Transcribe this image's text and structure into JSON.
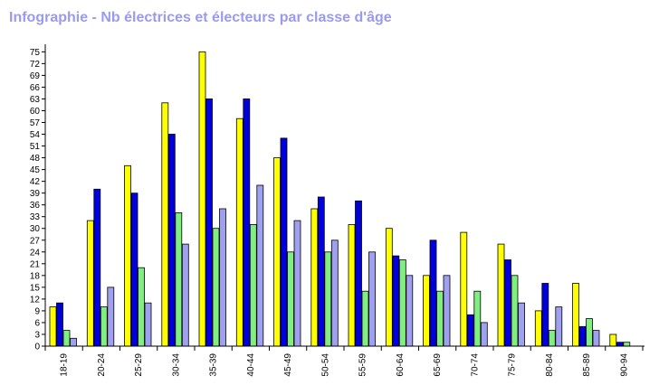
{
  "chart_data": {
    "type": "bar",
    "title": "Infographie - Nb électrices et électeurs par classe d'âge",
    "xlabel": "",
    "ylabel": "",
    "ylim": [
      0,
      76
    ],
    "yticks": [
      0,
      3,
      6,
      9,
      12,
      15,
      18,
      21,
      24,
      27,
      30,
      33,
      36,
      39,
      42,
      45,
      48,
      51,
      54,
      57,
      60,
      63,
      66,
      69,
      72,
      75
    ],
    "ytick_labels": [
      "0",
      "3",
      "6",
      "9",
      "12",
      "15",
      "18",
      "21",
      "24",
      "27",
      "30",
      "33",
      "36",
      "39",
      "42",
      "45",
      "48",
      "51",
      "54",
      "57",
      "60",
      "63",
      "66",
      "69",
      "72",
      "75"
    ],
    "grid": false,
    "legend": "none",
    "categories": [
      "18-19",
      "20-24",
      "25-29",
      "30-34",
      "35-39",
      "40-44",
      "45-49",
      "50-54",
      "55-59",
      "60-64",
      "65-69",
      "70-74",
      "75-79",
      "80-84",
      "85-89",
      "90-94"
    ],
    "series": [
      {
        "color": "#ffff00",
        "values": [
          10,
          32,
          46,
          62,
          75,
          58,
          48,
          35,
          31,
          30,
          18,
          29,
          26,
          9,
          16,
          3
        ]
      },
      {
        "color": "#0000dd",
        "values": [
          11,
          40,
          39,
          54,
          63,
          63,
          53,
          38,
          37,
          23,
          27,
          8,
          22,
          16,
          5,
          1
        ]
      },
      {
        "color": "#80ee80",
        "values": [
          4,
          10,
          20,
          34,
          30,
          31,
          24,
          24,
          14,
          22,
          14,
          14,
          18,
          4,
          7,
          1
        ]
      },
      {
        "color": "#a0a0f0",
        "values": [
          2,
          15,
          11,
          26,
          35,
          41,
          32,
          27,
          24,
          18,
          18,
          6,
          11,
          10,
          4,
          0
        ]
      }
    ]
  }
}
